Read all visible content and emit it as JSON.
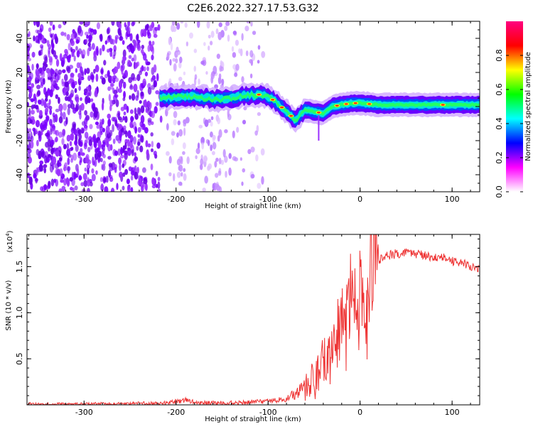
{
  "title": "C2E6.2022.327.17.53.G32",
  "chart_data": [
    {
      "type": "heatmap",
      "title": "C2E6.2022.327.17.53.G32",
      "xlabel": "Height of straight line (km)",
      "ylabel": "Frequency (Hz)",
      "xlim": [
        -362,
        130
      ],
      "ylim": [
        -50,
        50
      ],
      "xticks": [
        -300,
        -200,
        -100,
        0,
        100
      ],
      "yticks": [
        -40,
        -20,
        0,
        20,
        40
      ],
      "colorbar": {
        "label": "Normalized spectral amplitude",
        "range": [
          0,
          1
        ],
        "ticks": [
          "0.0",
          "0.2",
          "0.4",
          "0.6",
          "0.8"
        ],
        "colormap": [
          "#ffffff",
          "#ff00ff",
          "#0000ff",
          "#00ffff",
          "#00ff00",
          "#ffff00",
          "#ff0000",
          "#ff0080"
        ]
      },
      "signal_track": {
        "x": [
          -215,
          -190,
          -170,
          -150,
          -130,
          -110,
          -100,
          -90,
          -80,
          -70,
          -60,
          -50,
          -40,
          -30,
          -20,
          -10,
          0,
          20,
          50,
          80,
          100,
          130
        ],
        "y": [
          5,
          6,
          5,
          4,
          6,
          7,
          6,
          2,
          -3,
          -8,
          -2,
          -3,
          -4,
          0,
          1,
          2,
          2,
          1,
          1,
          1,
          1,
          1
        ]
      },
      "noise_region_xmax": -100,
      "grid": false
    },
    {
      "type": "line",
      "xlabel": "Height of straight line (km)",
      "ylabel": "SNR (10 * v/v)",
      "y_multiplier": "(x10",
      "y_exponent": "4",
      "y_multiplier_close": ")",
      "xlim": [
        -362,
        130
      ],
      "ylim": [
        0,
        1.85
      ],
      "xticks": [
        -300,
        -200,
        -100,
        0,
        100
      ],
      "yticks": [
        0.5,
        1.0,
        1.5
      ],
      "ytick_labels": [
        "0.5",
        "1.0",
        "1.5"
      ],
      "series_color": "#ee3333",
      "series": [
        {
          "x": [
            -362,
            -300,
            -250,
            -210,
            -200,
            -190,
            -180,
            -170,
            -150,
            -120,
            -100,
            -80,
            -70,
            -60,
            -50,
            -45,
            -40,
            -35,
            -30,
            -25,
            -20,
            -15,
            -10,
            -5,
            0,
            5,
            10,
            15,
            20,
            25,
            30,
            35,
            40,
            50,
            60,
            70,
            80,
            90,
            95,
            100,
            110,
            120,
            130
          ],
          "values": [
            0.01,
            0.01,
            0.015,
            0.02,
            0.04,
            0.05,
            0.03,
            0.025,
            0.02,
            0.03,
            0.04,
            0.07,
            0.12,
            0.2,
            0.3,
            0.4,
            0.5,
            0.55,
            0.65,
            0.8,
            0.9,
            1.1,
            1.25,
            1.2,
            1.3,
            1.35,
            1.42,
            1.5,
            1.57,
            1.6,
            1.62,
            1.63,
            1.64,
            1.65,
            1.64,
            1.62,
            1.6,
            1.6,
            1.58,
            1.56,
            1.54,
            1.51,
            1.48
          ]
        }
      ]
    }
  ]
}
